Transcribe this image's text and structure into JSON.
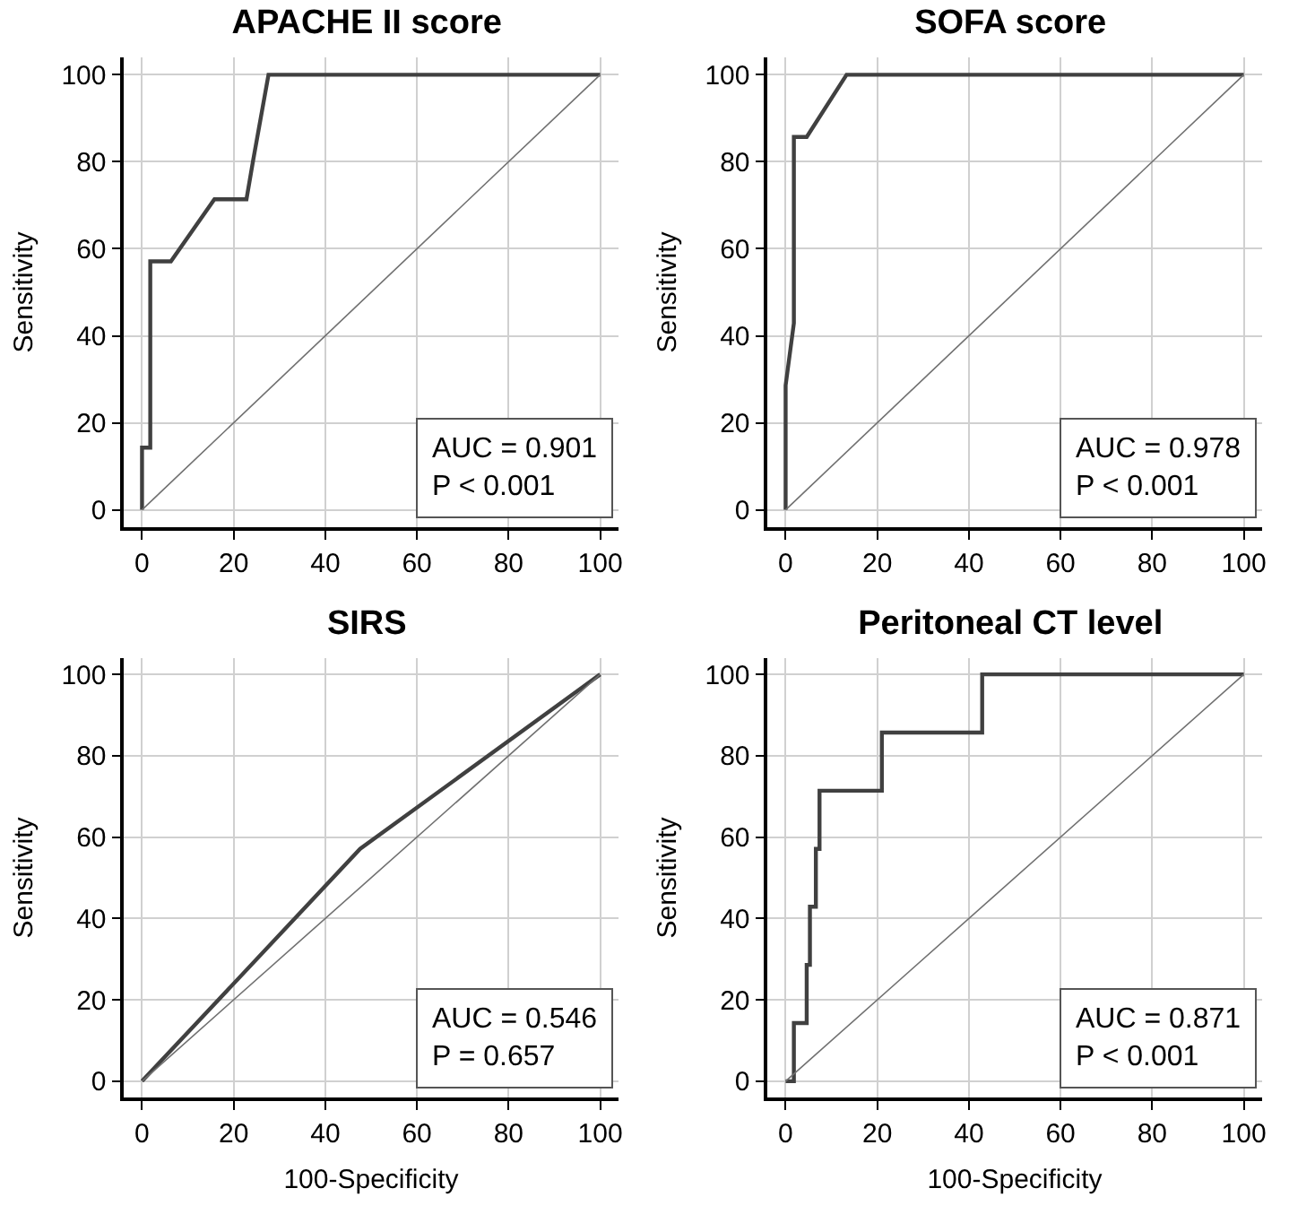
{
  "chart_data": [
    {
      "type": "line",
      "title": "APACHE II score",
      "ylabel": "Sensitivity",
      "xlim": [
        -4,
        104
      ],
      "ylim": [
        -4,
        104
      ],
      "xticks": [
        0,
        20,
        40,
        60,
        80,
        100
      ],
      "yticks": [
        0,
        20,
        40,
        60,
        80,
        100
      ],
      "grid": true,
      "annotations": [
        "AUC = 0.901",
        "P < 0.001"
      ],
      "series": [
        {
          "color": "#404040",
          "x": [
            0,
            0,
            1.8,
            1.8,
            6.3,
            15.8,
            22.8,
            24.2,
            27.6,
            100
          ],
          "values": [
            0,
            14.3,
            14.3,
            57.1,
            57.1,
            71.4,
            71.4,
            80,
            100,
            100
          ]
        },
        {
          "color": "#707070",
          "x": [
            0,
            100
          ],
          "values": [
            0,
            100
          ]
        }
      ]
    },
    {
      "type": "line",
      "title": "SOFA score",
      "ylabel": "Sensitivity",
      "xlim": [
        -4,
        104
      ],
      "ylim": [
        -4,
        104
      ],
      "xticks": [
        0,
        20,
        40,
        60,
        80,
        100
      ],
      "yticks": [
        0,
        20,
        40,
        60,
        80,
        100
      ],
      "grid": true,
      "annotations": [
        "AUC = 0.978",
        "P < 0.001"
      ],
      "series": [
        {
          "color": "#404040",
          "x": [
            0,
            0,
            1.8,
            1.8,
            4.6,
            13.3,
            100
          ],
          "values": [
            0,
            28.6,
            42.9,
            85.7,
            85.7,
            100,
            100
          ]
        },
        {
          "color": "#707070",
          "x": [
            0,
            100
          ],
          "values": [
            0,
            100
          ]
        }
      ]
    },
    {
      "type": "line",
      "title": "SIRS",
      "xlabel": "100-Specificity",
      "ylabel": "Sensitivity",
      "xlim": [
        -4,
        104
      ],
      "ylim": [
        -4,
        104
      ],
      "xticks": [
        0,
        20,
        40,
        60,
        80,
        100
      ],
      "yticks": [
        0,
        20,
        40,
        60,
        80,
        100
      ],
      "grid": true,
      "annotations": [
        "AUC = 0.546",
        "P = 0.657"
      ],
      "series": [
        {
          "color": "#404040",
          "x": [
            0,
            47.6,
            100
          ],
          "values": [
            0,
            57.1,
            100
          ]
        },
        {
          "color": "#707070",
          "x": [
            0,
            100
          ],
          "values": [
            0,
            100
          ]
        }
      ]
    },
    {
      "type": "line",
      "title": "Peritoneal CT level",
      "xlabel": "100-Specificity",
      "ylabel": "Sensitivity",
      "xlim": [
        -4,
        104
      ],
      "ylim": [
        -4,
        104
      ],
      "xticks": [
        0,
        20,
        40,
        60,
        80,
        100
      ],
      "yticks": [
        0,
        20,
        40,
        60,
        80,
        100
      ],
      "grid": true,
      "annotations": [
        "AUC = 0.871",
        "P < 0.001"
      ],
      "series": [
        {
          "color": "#404040",
          "x": [
            0,
            1.8,
            1.8,
            4.6,
            4.6,
            5.3,
            5.3,
            6.6,
            6.6,
            7.4,
            7.4,
            21,
            21,
            42.9,
            42.9,
            100
          ],
          "values": [
            0,
            0,
            14.3,
            14.3,
            28.6,
            28.6,
            42.9,
            42.9,
            57.1,
            57.1,
            71.4,
            71.4,
            85.7,
            85.7,
            100,
            100
          ]
        },
        {
          "color": "#707070",
          "x": [
            0,
            100
          ],
          "values": [
            0,
            100
          ]
        }
      ]
    }
  ]
}
